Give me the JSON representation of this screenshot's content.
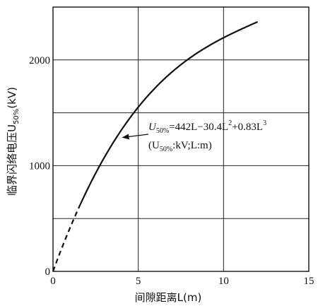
{
  "chart_data": {
    "type": "line",
    "title": "",
    "xlabel": "间隙距离L(m)",
    "ylabel_main": "临界闪络电压U",
    "ylabel_sub": "50%",
    "ylabel_unit": "(kV)",
    "xlim": [
      0,
      15
    ],
    "ylim": [
      0,
      2500
    ],
    "x_ticks": [
      0,
      5,
      10,
      15
    ],
    "y_ticks": [
      0,
      1000,
      2000
    ],
    "grid": true,
    "grid_x": [
      5,
      10
    ],
    "grid_y": [
      500,
      1000,
      1500,
      2000
    ],
    "series": [
      {
        "style": "dashed",
        "formula": [
          0,
          442,
          -30.4,
          0.83
        ],
        "x_range": [
          0,
          1.5
        ]
      },
      {
        "style": "solid",
        "formula": [
          0,
          442,
          -30.4,
          0.83
        ],
        "x_range": [
          1.5,
          12
        ]
      }
    ],
    "annotation": {
      "line1_a": "U",
      "line1_sub": "50%",
      "line1_b": "=442L−30.4L",
      "line1_sup1": "2",
      "line1_c": "+0.83L",
      "line1_sup2": "3",
      "line2_a": "(U",
      "line2_sub": "50%",
      "line2_b": ":kV;L:m)",
      "arrow_target": [
        4,
        1280
      ]
    }
  }
}
